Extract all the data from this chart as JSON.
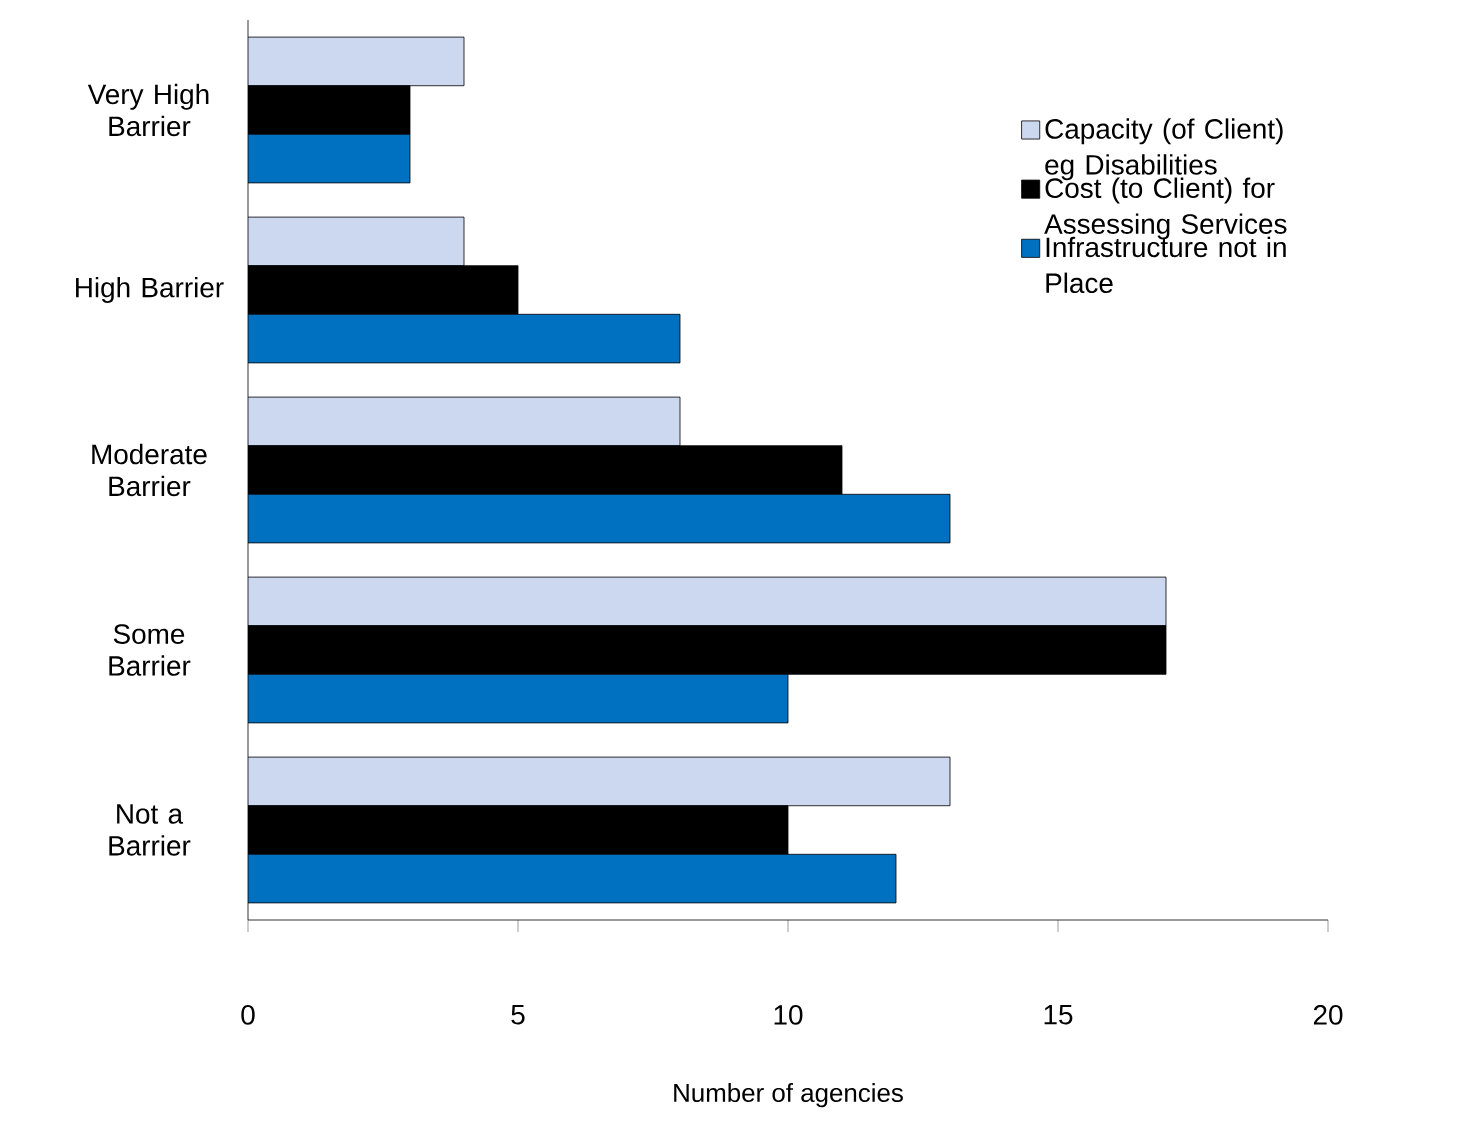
{
  "chart_data": {
    "type": "bar",
    "orientation": "horizontal",
    "xlabel": "Number of agencies",
    "categories": [
      "Very High Barrier",
      "High Barrier",
      "Moderate Barrier",
      "Some Barrier",
      "Not a Barrier"
    ],
    "series": [
      {
        "name": "Capacity (of Client) eg Disabilities",
        "color": "#ccd8f0",
        "values": [
          4,
          4,
          8,
          17,
          13
        ]
      },
      {
        "name": "Cost (to Client) for Assessing Services",
        "color": "#000000",
        "values": [
          3,
          5,
          11,
          17,
          10
        ]
      },
      {
        "name": "Infrastructure not in Place",
        "color": "#0070c0",
        "values": [
          3,
          8,
          13,
          10,
          12
        ]
      }
    ],
    "xlim": [
      0,
      20
    ],
    "xticks": [
      0,
      5,
      10,
      15,
      20
    ],
    "grid": false,
    "legend": "top right"
  }
}
